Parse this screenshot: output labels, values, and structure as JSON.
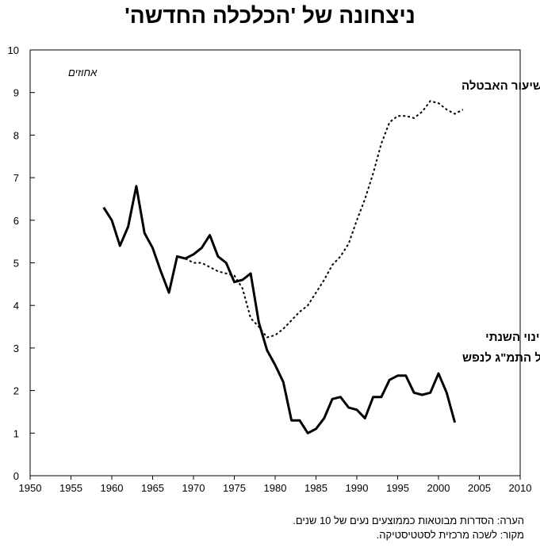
{
  "chart_data": {
    "type": "line",
    "title": "ניצחונה של 'הכלכלה החדשה'",
    "unit_label": "אחוזים",
    "xlim": [
      1950,
      2010
    ],
    "ylim": [
      0,
      10
    ],
    "x_ticks": [
      1950,
      1955,
      1960,
      1965,
      1970,
      1975,
      1980,
      1985,
      1990,
      1995,
      2000,
      2005,
      2010
    ],
    "y_ticks": [
      0,
      1,
      2,
      3,
      4,
      5,
      6,
      7,
      8,
      9,
      10
    ],
    "grid": false,
    "series": [
      {
        "name": "שיעור האבטלה",
        "label_lines": [
          "שיעור האבטלה"
        ],
        "style": "dotted",
        "x": [
          1969,
          1970,
          1971,
          1972,
          1973,
          1974,
          1975,
          1976,
          1977,
          1978,
          1979,
          1980,
          1981,
          1982,
          1983,
          1984,
          1985,
          1986,
          1987,
          1988,
          1989,
          1990,
          1991,
          1992,
          1993,
          1994,
          1995,
          1996,
          1997,
          1998,
          1999,
          2000,
          2001,
          2002,
          2003
        ],
        "values": [
          5.1,
          5.0,
          5.0,
          4.9,
          4.8,
          4.75,
          4.7,
          4.4,
          3.7,
          3.5,
          3.25,
          3.3,
          3.45,
          3.65,
          3.85,
          4.0,
          4.3,
          4.6,
          4.95,
          5.15,
          5.45,
          6.0,
          6.5,
          7.1,
          7.8,
          8.3,
          8.45,
          8.45,
          8.4,
          8.55,
          8.8,
          8.75,
          8.6,
          8.5,
          8.6
        ]
      },
      {
        "name": "שיעור השינוי השנתי של התמ\"ג לנפש",
        "label_lines": [
          "שיעור השינוי השנתי",
          "של התמ\"ג לנפש"
        ],
        "style": "solid",
        "x": [
          1959,
          1960,
          1961,
          1962,
          1963,
          1964,
          1965,
          1966,
          1967,
          1968,
          1969,
          1970,
          1971,
          1972,
          1973,
          1974,
          1975,
          1976,
          1977,
          1978,
          1979,
          1980,
          1981,
          1982,
          1983,
          1984,
          1985,
          1986,
          1987,
          1988,
          1989,
          1990,
          1991,
          1992,
          1993,
          1994,
          1995,
          1996,
          1997,
          1998,
          1999,
          2000,
          2001,
          2002
        ],
        "values": [
          6.3,
          6.0,
          5.4,
          5.85,
          6.8,
          5.7,
          5.35,
          4.8,
          4.3,
          5.15,
          5.1,
          5.2,
          5.35,
          5.65,
          5.15,
          5.0,
          4.55,
          4.6,
          4.75,
          3.6,
          2.95,
          2.6,
          2.2,
          1.3,
          1.3,
          1.0,
          1.1,
          1.35,
          1.8,
          1.85,
          1.6,
          1.55,
          1.35,
          1.85,
          1.85,
          2.25,
          2.35,
          2.35,
          1.95,
          1.9,
          1.95,
          2.4,
          1.95,
          1.25
        ]
      }
    ]
  },
  "notes": [
    "הערה: הסדרות מבוטאות כממוצעים נעים של 10 שנים.",
    "מקור: לשכה מרכזית לסטטיסטיקה."
  ]
}
